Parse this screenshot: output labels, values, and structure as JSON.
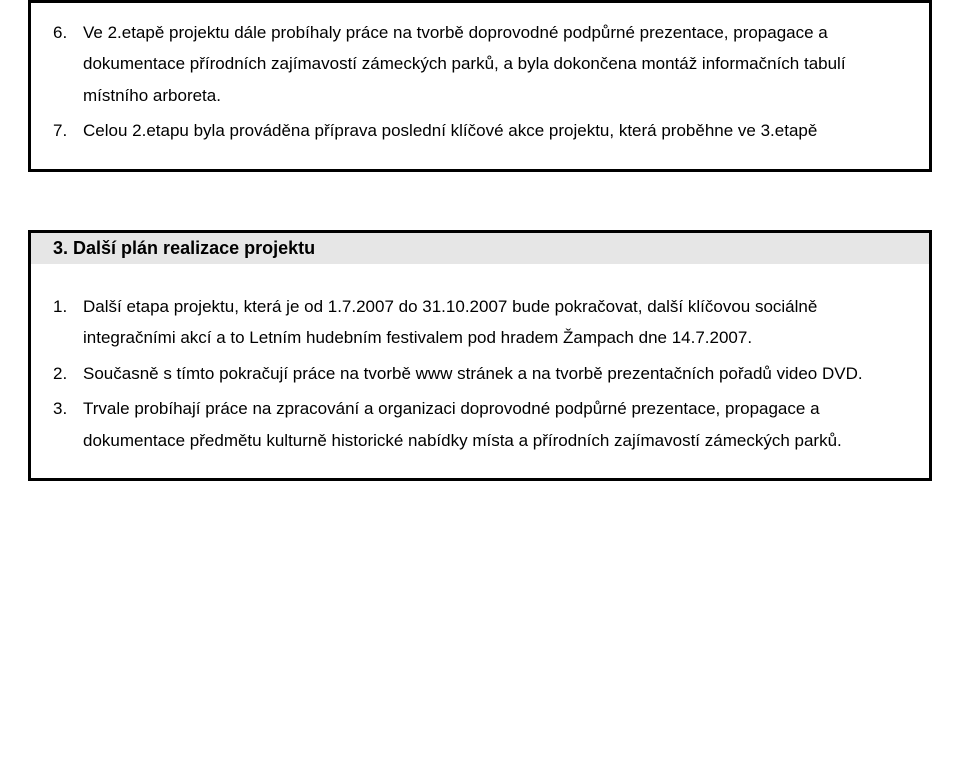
{
  "colors": {
    "page_background": "#ffffff",
    "text": "#000000",
    "frame_border": "#000000",
    "section_title_bg": "#e6e6e6"
  },
  "typography": {
    "body_font_size_pt": 12,
    "heading_font_size_pt": 13,
    "heading_weight": "bold",
    "line_height": 1.85,
    "font_family": "Arial"
  },
  "top_box": {
    "start_number": 6,
    "items": [
      "Ve 2.etapě projektu dále probíhaly práce na tvorbě doprovodné podpůrné prezentace, propagace a dokumentace přírodních zajímavostí zámeckých parků, a byla dokončena montáž informačních tabulí místního arboreta.",
      "Celou 2.etapu byla prováděna příprava poslední klíčové akce projektu, která proběhne ve 3.etapě"
    ]
  },
  "bottom_box": {
    "section_number": "3.",
    "section_title": "Další plán realizace projektu",
    "start_number": 1,
    "items": [
      "Další etapa projektu, která je od 1.7.2007 do 31.10.2007 bude pokračovat, další klíčovou sociálně integračními akcí a to Letním hudebním festivalem pod hradem Žampach dne 14.7.2007.",
      "Současně s tímto pokračují práce na tvorbě www stránek a na tvorbě prezentačních pořadů video DVD.",
      "Trvale probíhají práce na zpracování a organizaci doprovodné podpůrné prezentace, propagace a dokumentace předmětu kulturně historické nabídky místa a přírodních zajímavostí zámeckých parků."
    ]
  }
}
